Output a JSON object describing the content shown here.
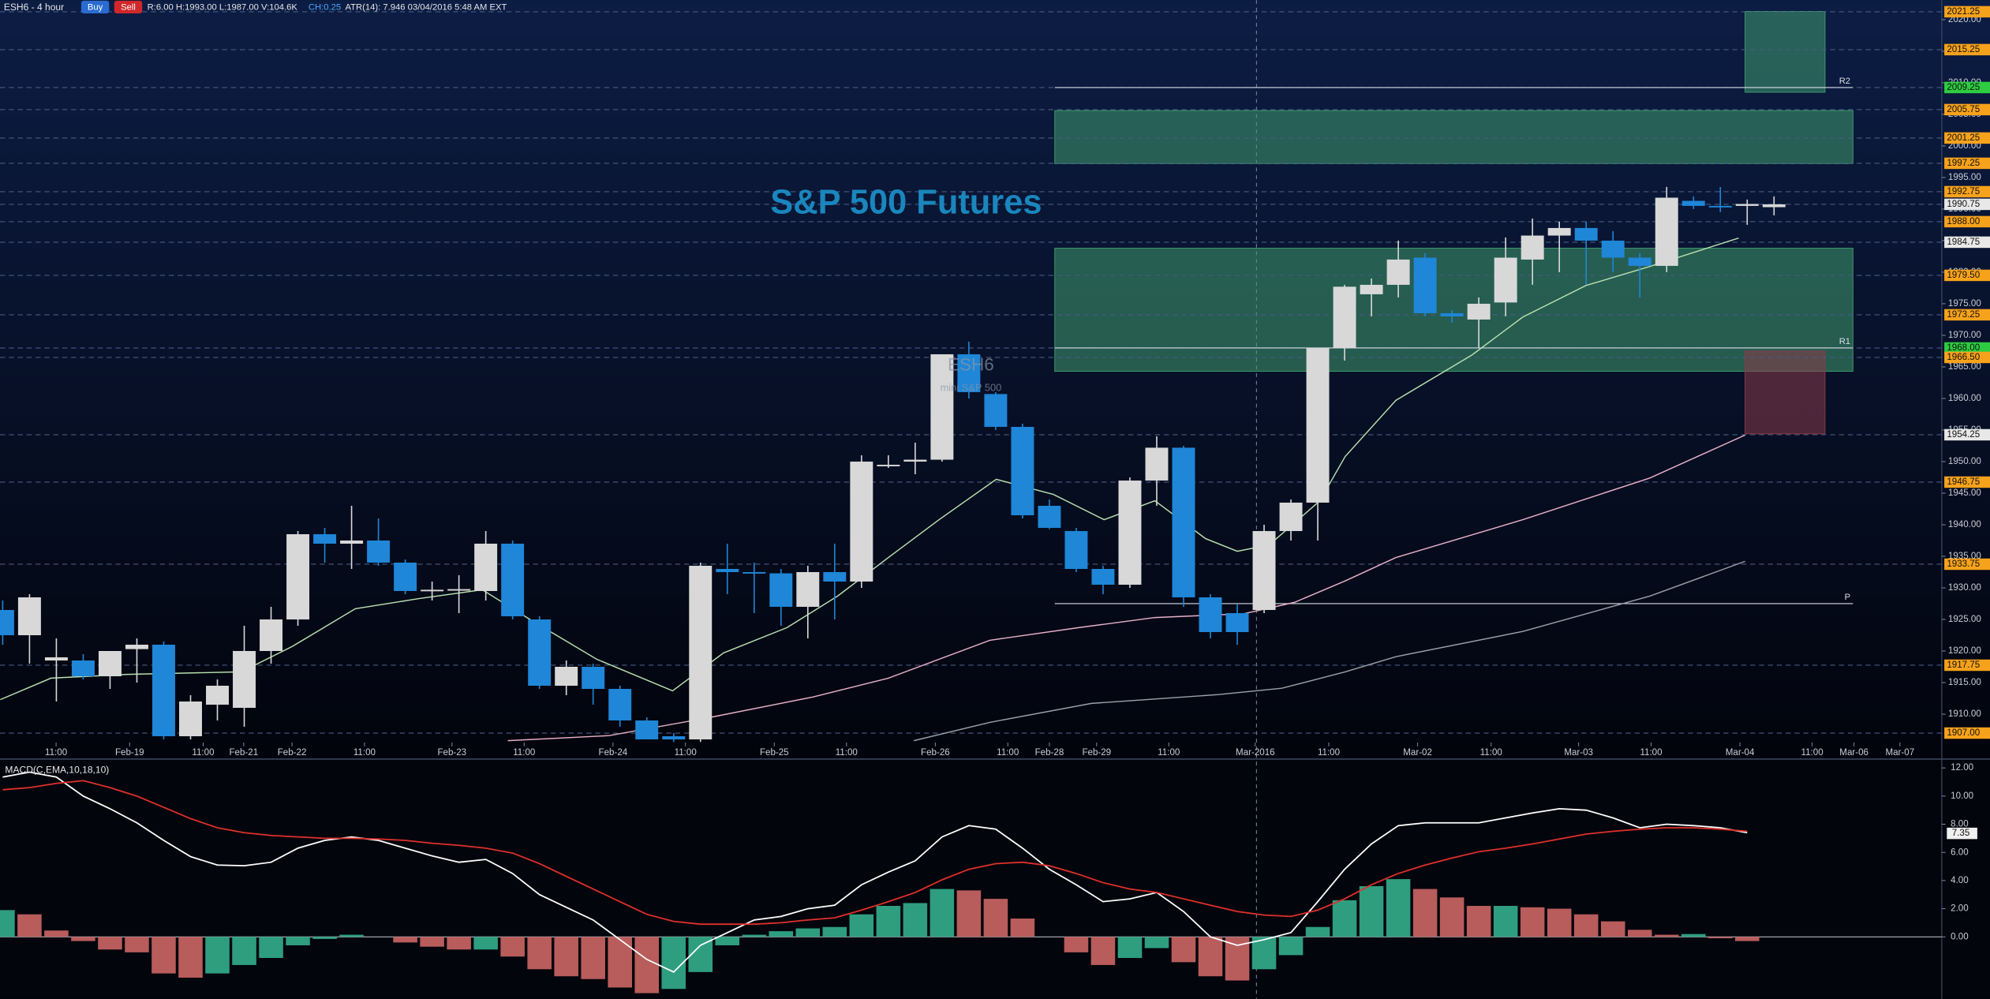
{
  "header": {
    "symbol": "ESH6 - 4 hour",
    "buy": "Buy",
    "sell": "Sell",
    "quote": "R:6.00  H:1993.00  L:1987.00  V:104.6K",
    "change": "CH:0.25",
    "info": "ATR(14): 7.946  03/04/2016 5:48 AM  EXT"
  },
  "chart_data": [
    {
      "type": "candlestick",
      "title": "S&P 500 Futures",
      "watermark": [
        "ESH6",
        "mini S&P 500"
      ],
      "up_color": "#d8d8d8",
      "down_color": "#1f86d8",
      "categories": [
        null,
        null,
        null,
        null,
        null,
        null,
        null,
        null,
        null,
        null,
        null,
        null,
        null,
        null,
        null,
        null,
        null,
        null,
        null,
        null,
        null,
        null,
        null,
        null,
        null,
        null,
        null,
        null,
        null,
        null,
        null,
        null,
        null,
        null,
        null,
        null,
        null,
        null,
        null,
        null,
        null,
        null,
        null,
        null,
        null,
        null,
        null,
        null,
        null,
        null,
        null,
        null,
        null,
        null,
        null,
        null,
        null,
        null,
        null,
        null,
        null,
        null,
        null,
        null,
        null,
        null,
        null
      ],
      "open": [
        1926.5,
        1922.5,
        1918.5,
        1918.5,
        1916,
        1920.3,
        1921,
        1906.5,
        1911.5,
        1911,
        1920,
        1925,
        1938.5,
        1937,
        1937.5,
        1934,
        1929.5,
        1929.7,
        1929.5,
        1937,
        1925,
        1914.5,
        1917.5,
        1914,
        1909,
        1906.5,
        1906,
        1933,
        1932.5,
        1932.3,
        1927,
        1932.5,
        1931,
        1949.5,
        1950,
        1950.3,
        1967,
        1960.7,
        1955.5,
        1943,
        1939,
        1933,
        1930.5,
        1947,
        1952.2,
        1928.5,
        1926,
        1926.5,
        1939,
        1943.5,
        1968,
        1976.5,
        1978,
        1982.3,
        1973.5,
        1972.5,
        1975.2,
        1982,
        1985.8,
        1987,
        1985,
        1982.3,
        1981,
        1991.3,
        1990.5,
        1990.5,
        1990.3
      ],
      "high": [
        1928,
        1929,
        1922,
        1919.5,
        1920,
        1922,
        1921.5,
        1913,
        1915.5,
        1924,
        1927,
        1939,
        1939.5,
        1943,
        1941,
        1934.5,
        1931,
        1932,
        1939,
        1937.5,
        1925.5,
        1918.5,
        1918,
        1914.5,
        1909.5,
        1907,
        1934,
        1937,
        1934,
        1933,
        1933.5,
        1937,
        1951,
        1951,
        1953,
        1967,
        1969,
        1961,
        1956,
        1944,
        1939.5,
        1933.5,
        1947.5,
        1954,
        1952.5,
        1929,
        1927.5,
        1940,
        1944,
        1968,
        1978,
        1979,
        1985,
        1983,
        1974,
        1976,
        1985.5,
        1988.5,
        1988,
        1988,
        1986.5,
        1983,
        1993.5,
        1992,
        1993.5,
        1991.5,
        1992
      ],
      "low": [
        1921,
        1918,
        1912,
        1915.5,
        1914,
        1915,
        1906,
        1906,
        1909,
        1908,
        1918,
        1924,
        1934,
        1933,
        1933.5,
        1929,
        1928,
        1926,
        1928,
        1925,
        1914,
        1913,
        1911.5,
        1908,
        1906,
        1905.6,
        1905.6,
        1929,
        1926,
        1924,
        1922,
        1925,
        1930,
        1949,
        1948,
        1950,
        1960,
        1955,
        1941,
        1939.3,
        1932.5,
        1929,
        1930,
        1943,
        1927,
        1922,
        1921,
        1926,
        1937.5,
        1937.5,
        1966,
        1973,
        1976,
        1973,
        1972,
        1968,
        1973,
        1978,
        1980,
        1978,
        1980,
        1976,
        1980,
        1990,
        1989.5,
        1987.5,
        1989
      ],
      "close": [
        1922.5,
        1928.5,
        1919,
        1916,
        1920,
        1921,
        1906.5,
        1912,
        1914.5,
        1920,
        1925,
        1938.5,
        1937,
        1937.5,
        1934,
        1929.5,
        1929.7,
        1929.8,
        1937,
        1925.5,
        1914.5,
        1917.5,
        1914,
        1909,
        1906,
        1906,
        1933.5,
        1932.5,
        1932.3,
        1927,
        1932.5,
        1931,
        1950,
        1949.5,
        1950.3,
        1967,
        1961,
        1955.5,
        1941.5,
        1939.5,
        1933,
        1930.5,
        1947,
        1952.2,
        1928.5,
        1923,
        1923,
        1939,
        1943.5,
        1968,
        1977.7,
        1978,
        1982,
        1973.5,
        1973,
        1975,
        1982.3,
        1985.8,
        1987,
        1985,
        1982.3,
        1981,
        1991.8,
        1990.5,
        1990.3,
        1990.8,
        1990.75
      ],
      "xlim": [
        -0.1,
        72.25
      ],
      "ylim": [
        1905.5,
        2023.1
      ],
      "xticks": [
        {
          "value": 1.99,
          "label": "11:00"
        },
        {
          "value": 4.73,
          "label": "Feb-19"
        },
        {
          "value": 7.47,
          "label": "11:00"
        },
        {
          "value": 8.98,
          "label": "Feb-21"
        },
        {
          "value": 10.78,
          "label": "Feb-22"
        },
        {
          "value": 13.48,
          "label": "11:00"
        },
        {
          "value": 16.74,
          "label": "Feb-23"
        },
        {
          "value": 19.43,
          "label": "11:00"
        },
        {
          "value": 22.74,
          "label": "Feb-24"
        },
        {
          "value": 25.44,
          "label": "11:00"
        },
        {
          "value": 28.75,
          "label": "Feb-25"
        },
        {
          "value": 31.44,
          "label": "11:00"
        },
        {
          "value": 34.75,
          "label": "Feb-26"
        },
        {
          "value": 37.45,
          "label": "11:00"
        },
        {
          "value": 39.0,
          "label": "Feb-28"
        },
        {
          "value": 40.76,
          "label": "Feb-29"
        },
        {
          "value": 43.45,
          "label": "11:00"
        },
        {
          "value": 46.67,
          "label": "Mar-2016"
        },
        {
          "value": 49.41,
          "label": "11:00"
        },
        {
          "value": 52.72,
          "label": "Mar-02"
        },
        {
          "value": 55.46,
          "label": "11:00"
        },
        {
          "value": 58.72,
          "label": "Mar-03"
        },
        {
          "value": 61.42,
          "label": "11:00"
        },
        {
          "value": 64.73,
          "label": "Mar-04"
        },
        {
          "value": 67.42,
          "label": "11:00"
        },
        {
          "value": 68.98,
          "label": "Mar-06"
        },
        {
          "value": 70.69,
          "label": "Mar-07"
        }
      ],
      "yticks": [
        {
          "value": 1910,
          "label": "1910.00"
        },
        {
          "value": 1915,
          "label": "1915.00"
        },
        {
          "value": 1920,
          "label": "1920.00"
        },
        {
          "value": 1925,
          "label": "1925.00"
        },
        {
          "value": 1930,
          "label": "1930.00"
        },
        {
          "value": 1935,
          "label": "1935.00"
        },
        {
          "value": 1940,
          "label": "1940.00"
        },
        {
          "value": 1945,
          "label": "1945.00"
        },
        {
          "value": 1950,
          "label": "1950.00"
        },
        {
          "value": 1955,
          "label": "1955.00"
        },
        {
          "value": 1960,
          "label": "1960.00"
        },
        {
          "value": 1965,
          "label": "1965.00"
        },
        {
          "value": 1970,
          "label": "1970.00"
        },
        {
          "value": 1975,
          "label": "1975.00"
        },
        {
          "value": 1980,
          "label": "1980.00"
        },
        {
          "value": 1985,
          "label": "1985.00"
        },
        {
          "value": 1990,
          "label": "1990.00"
        },
        {
          "value": 1995,
          "label": "1995.00"
        },
        {
          "value": 2000,
          "label": "2000.00"
        },
        {
          "value": 2005,
          "label": "2005.00"
        },
        {
          "value": 2010,
          "label": "2010.00"
        },
        {
          "value": 2015,
          "label": "2015.00"
        },
        {
          "value": 2020,
          "label": "2020.00"
        }
      ],
      "levels": [
        {
          "value": 2021.25,
          "label": "2021.25",
          "color": "#f7a21b"
        },
        {
          "value": 2015.25,
          "label": "2015.25",
          "color": "#f7a21b"
        },
        {
          "value": 2009.25,
          "label": "2009.25",
          "color": "#2ecc40"
        },
        {
          "value": 2005.75,
          "label": "2005.75",
          "color": "#f7a21b"
        },
        {
          "value": 2001.25,
          "label": "2001.25",
          "color": "#f7a21b"
        },
        {
          "value": 1997.25,
          "label": "1997.25",
          "color": "#f7a21b"
        },
        {
          "value": 1992.75,
          "label": "1992.75",
          "color": "#f7a21b"
        },
        {
          "value": 1990.75,
          "label": "1990.75",
          "color": "#e8e8e8"
        },
        {
          "value": 1988.0,
          "label": "1988.00",
          "color": "#f7a21b"
        },
        {
          "value": 1984.75,
          "label": "1984.75",
          "color": "#e8e8e8"
        },
        {
          "value": 1979.5,
          "label": "1979.50",
          "color": "#f7a21b"
        },
        {
          "value": 1973.25,
          "label": "1973.25",
          "color": "#f7a21b"
        },
        {
          "value": 1968.0,
          "label": "1968.00",
          "color": "#2ecc40"
        },
        {
          "value": 1966.5,
          "label": "1966.50",
          "color": "#f7a21b"
        },
        {
          "value": 1954.25,
          "label": "1954.25",
          "color": "#e8e8e8"
        },
        {
          "value": 1946.75,
          "label": "1946.75",
          "color": "#f7a21b"
        },
        {
          "value": 1933.75,
          "label": "1933.75",
          "color": "#f7a21b"
        },
        {
          "value": 1917.75,
          "label": "1917.75",
          "color": "#f7a21b"
        },
        {
          "value": 1907.0,
          "label": "1907.00",
          "color": "#f7a21b"
        }
      ],
      "zones": [
        {
          "x": [
            39.2,
            68.94
          ],
          "top": 2005.6,
          "bottom": 1997.2,
          "color": "#3f9a6e"
        },
        {
          "x": [
            39.2,
            68.94
          ],
          "top": 1983.8,
          "bottom": 1964.3,
          "color": "#3f9a6e"
        },
        {
          "x": [
            64.92,
            67.9
          ],
          "top": 2021.3,
          "bottom": 2008.5,
          "color": "#3f9a6e"
        },
        {
          "x": [
            64.92,
            67.9
          ],
          "top": 1967.5,
          "bottom": 1954.4,
          "color": "#8a3a4a"
        }
      ],
      "pivots": [
        {
          "label": "R2",
          "value": 2009.25,
          "x": [
            39.2,
            68.94
          ]
        },
        {
          "label": "R1",
          "value": 1968.0,
          "x": [
            39.2,
            68.94
          ]
        },
        {
          "label": "P",
          "value": 1927.5,
          "x": [
            39.2,
            68.94
          ]
        }
      ],
      "overlays": [
        {
          "color": "#b8e0b0",
          "x": [
            -0.09,
            1.8,
            4.63,
            8.89,
            10.78,
            13.14,
            15.51,
            17.87,
            19.76,
            22.13,
            24.96,
            26.86,
            29.22,
            31.11,
            33.0,
            34.89,
            37.02,
            39.15,
            41.04,
            42.93,
            44.82,
            46.0,
            47.19,
            49.08,
            50.02,
            51.91,
            54.75,
            56.64,
            59.0,
            61.37,
            64.68
          ],
          "values": [
            1912.3,
            1915.7,
            1916.3,
            1916.7,
            1920.7,
            1926.7,
            1928.3,
            1929.7,
            1924.7,
            1918.7,
            1913.7,
            1919.7,
            1923.7,
            1928.7,
            1934.8,
            1940.8,
            1947.2,
            1944.8,
            1940.8,
            1943.8,
            1937.8,
            1935.8,
            1936.8,
            1943.8,
            1950.8,
            1959.7,
            1966.9,
            1972.9,
            1977.9,
            1980.9,
            1985.4
          ]
        },
        {
          "color": "#e8b0c8",
          "x": [
            18.82,
            22.6,
            26.38,
            30.17,
            33.0,
            36.78,
            40.09,
            42.93,
            46.24,
            48.13,
            50.02,
            51.91,
            56.64,
            61.37,
            64.92
          ],
          "values": [
            1905.8,
            1906.6,
            1909.5,
            1912.7,
            1915.7,
            1921.7,
            1923.7,
            1925.3,
            1925.9,
            1927.7,
            1931.1,
            1934.8,
            1940.8,
            1947.4,
            1954.2
          ]
        },
        {
          "color": "#9aa0a8",
          "x": [
            33.95,
            36.78,
            40.57,
            45.3,
            47.66,
            50.02,
            51.91,
            56.64,
            61.37,
            64.92
          ],
          "values": [
            1905.8,
            1908.7,
            1911.7,
            1913.1,
            1914.1,
            1916.7,
            1919.1,
            1923.1,
            1928.7,
            1934.2
          ]
        }
      ]
    },
    {
      "type": "macd",
      "title": "MACD(C,EMA,10,18,10)",
      "xlim": [
        -0.1,
        72.25
      ],
      "ylim": [
        -4.41,
        12.45
      ],
      "yticks": [
        {
          "value": 0,
          "label": "0.00"
        },
        {
          "value": 2,
          "label": "2.00"
        },
        {
          "value": 4,
          "label": "4.00"
        },
        {
          "value": 6,
          "label": "6.00"
        },
        {
          "value": 8,
          "label": "8.00"
        },
        {
          "value": 10,
          "label": "10.00"
        },
        {
          "value": 12,
          "label": "12.00"
        }
      ],
      "last_value": 7.35,
      "up_color": "#2e9e7e",
      "down_color": "#b85c5c",
      "histogram": [
        1.9,
        1.6,
        0.45,
        -0.3,
        -0.9,
        -1.1,
        -2.6,
        -2.9,
        -2.6,
        -2.0,
        -1.5,
        -0.6,
        -0.15,
        0.15,
        0,
        -0.4,
        -0.7,
        -0.9,
        -0.9,
        -1.4,
        -2.3,
        -2.8,
        -3.0,
        -3.6,
        -4.0,
        -3.7,
        -2.5,
        -0.6,
        0.15,
        0.4,
        0.6,
        0.7,
        1.6,
        2.2,
        2.4,
        3.4,
        3.3,
        2.7,
        1.3,
        0,
        -1.1,
        -2.0,
        -1.5,
        -0.8,
        -1.8,
        -2.8,
        -3.1,
        -2.3,
        -1.3,
        0.7,
        2.6,
        3.6,
        4.1,
        3.4,
        2.8,
        2.2,
        2.2,
        2.1,
        2.0,
        1.6,
        1.1,
        0.5,
        0.15,
        0.2,
        -0.1,
        -0.3,
        null
      ],
      "series": [
        {
          "color": "#ffffff",
          "values": [
            11.35,
            11.7,
            11.35,
            10.0,
            9.1,
            8.1,
            6.85,
            5.7,
            5.1,
            5.05,
            5.3,
            6.3,
            6.85,
            7.1,
            6.85,
            6.3,
            5.75,
            5.3,
            5.5,
            4.5,
            3.0,
            2.1,
            1.2,
            -0.2,
            -1.6,
            -2.5,
            -0.6,
            0.3,
            1.2,
            1.45,
            2.0,
            2.25,
            3.7,
            4.6,
            5.4,
            7.1,
            7.9,
            7.65,
            6.3,
            4.8,
            3.7,
            2.5,
            2.7,
            3.15,
            1.8,
            0,
            -0.6,
            -0.2,
            0.3,
            2.5,
            4.8,
            6.6,
            7.9,
            8.1,
            8.1,
            8.1,
            8.45,
            8.8,
            9.1,
            9.0,
            8.45,
            7.75,
            8.0,
            7.9,
            7.75,
            7.4,
            null
          ]
        },
        {
          "color": "#e0302a",
          "values": [
            10.45,
            10.6,
            10.9,
            11.1,
            10.6,
            10.0,
            9.2,
            8.4,
            7.75,
            7.4,
            7.2,
            7.1,
            7.0,
            7.0,
            6.95,
            6.85,
            6.65,
            6.5,
            6.3,
            5.95,
            5.2,
            4.3,
            3.4,
            2.5,
            1.6,
            1.1,
            0.9,
            0.9,
            0.9,
            1.0,
            1.2,
            1.35,
            1.9,
            2.5,
            3.15,
            4.05,
            4.8,
            5.2,
            5.3,
            5.05,
            4.5,
            3.85,
            3.4,
            3.15,
            2.7,
            2.25,
            1.8,
            1.55,
            1.45,
            1.9,
            2.7,
            3.7,
            4.5,
            5.1,
            5.6,
            6.05,
            6.3,
            6.6,
            6.95,
            7.3,
            7.5,
            7.65,
            7.75,
            7.75,
            7.65,
            7.5,
            null
          ]
        }
      ]
    }
  ]
}
